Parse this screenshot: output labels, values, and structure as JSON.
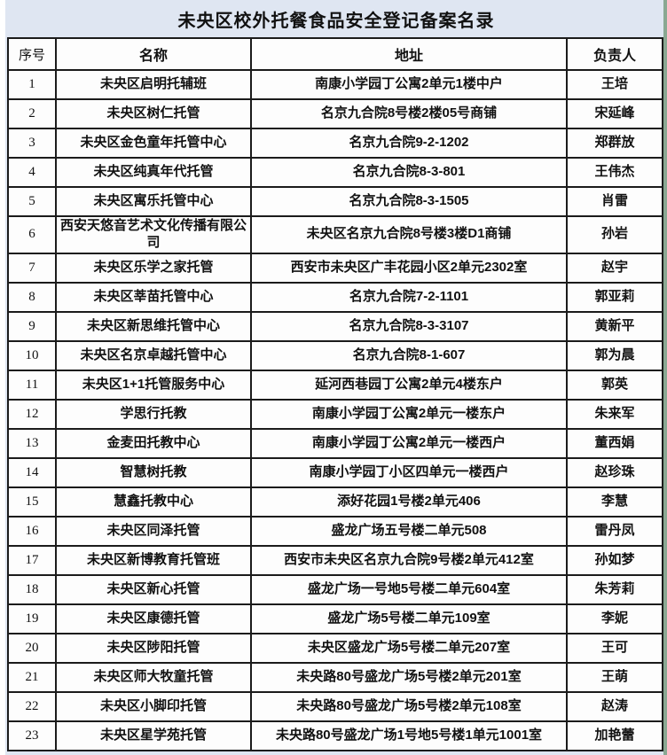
{
  "page": {
    "title": "未央区校外托餐食品安全登记备案名录"
  },
  "colors": {
    "page_bg": "#dfe6f2",
    "cell_bg": "#fdfdfd",
    "border": "#1b1b1b",
    "right_edge": "#8aa892",
    "text": "#111111"
  },
  "table": {
    "headers": {
      "no": "序号",
      "name": "名称",
      "address": "地址",
      "person": "负责人"
    },
    "rows": [
      {
        "no": "1",
        "name": "未央区启明托辅班",
        "address": "南康小学园丁公寓2单元1楼中户",
        "person": "王培"
      },
      {
        "no": "2",
        "name": "未央区树仁托管",
        "address": "名京九合院8号楼2楼05号商铺",
        "person": "宋延峰"
      },
      {
        "no": "3",
        "name": "未央区金色童年托管中心",
        "address": "名京九合院9-2-1202",
        "person": "郑群放"
      },
      {
        "no": "4",
        "name": "未央区纯真年代托管",
        "address": "名京九合院8-3-801",
        "person": "王伟杰"
      },
      {
        "no": "5",
        "name": "未央区寓乐托管中心",
        "address": "名京九合院8-3-1505",
        "person": "肖雷"
      },
      {
        "no": "6",
        "name": "西安天悠音艺术文化传播有限公司",
        "address": "未央区名京九合院8号楼3楼D1商铺",
        "person": "孙岩"
      },
      {
        "no": "7",
        "name": "未央区乐学之家托管",
        "address": "西安市未央区广丰花园小区2单元2302室",
        "person": "赵宇"
      },
      {
        "no": "8",
        "name": "未央区莘苗托管中心",
        "address": "名京九合院7-2-1101",
        "person": "郭亚莉"
      },
      {
        "no": "9",
        "name": "未央区新思维托管中心",
        "address": "名京九合院8-3-3107",
        "person": "黄新平"
      },
      {
        "no": "10",
        "name": "未央区名京卓越托管中心",
        "address": "名京九合院8-1-607",
        "person": "郭为晨"
      },
      {
        "no": "11",
        "name": "未央区1+1托管服务中心",
        "address": "延河西巷园丁公寓2单元4楼东户",
        "person": "郭英"
      },
      {
        "no": "12",
        "name": "学思行托教",
        "address": "南康小学园丁公寓2单元一楼东户",
        "person": "朱来军"
      },
      {
        "no": "13",
        "name": "金麦田托教中心",
        "address": "南康小学园丁公寓2单元一楼西户",
        "person": "董西娟"
      },
      {
        "no": "14",
        "name": "智慧树托教",
        "address": "南康小学园丁小区四单元一楼西户",
        "person": "赵珍珠"
      },
      {
        "no": "15",
        "name": "慧鑫托教中心",
        "address": "添好花园1号楼2单元406",
        "person": "李慧"
      },
      {
        "no": "16",
        "name": "未央区同泽托管",
        "address": "盛龙广场五号楼二单元508",
        "person": "雷丹凤"
      },
      {
        "no": "17",
        "name": "未央区新博教育托管班",
        "address": "西安市未央区名京九合院9号楼2单元412室",
        "person": "孙如梦"
      },
      {
        "no": "18",
        "name": "未央区新心托管",
        "address": "盛龙广场一号地5号楼二单元604室",
        "person": "朱芳莉"
      },
      {
        "no": "19",
        "name": "未央区康德托管",
        "address": "盛龙广场5号楼二单元109室",
        "person": "李妮"
      },
      {
        "no": "20",
        "name": "未央区陟阳托管",
        "address": "未央区盛龙广场5号楼二单元207室",
        "person": "王可"
      },
      {
        "no": "21",
        "name": "未央区师大牧童托管",
        "address": "未央路80号盛龙广场5号楼2单元201室",
        "person": "王萌"
      },
      {
        "no": "22",
        "name": "未央区小脚印托管",
        "address": "未央路80号盛龙广场5号楼2单元108室",
        "person": "赵涛"
      },
      {
        "no": "23",
        "name": "未央区星学苑托管",
        "address": "未央路80号盛龙广场1号地5号楼1单元1001室",
        "person": "加艳蕾"
      }
    ]
  }
}
